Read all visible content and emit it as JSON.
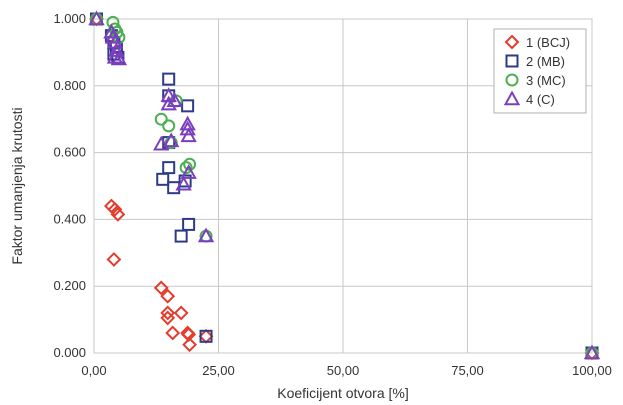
{
  "chart_data": {
    "type": "scatter",
    "title": "",
    "xlabel": "Koeficijent otvora [%]",
    "ylabel": "Faktor umanjenja krutosti",
    "xlim": [
      0,
      100
    ],
    "ylim": [
      0,
      1
    ],
    "x_ticks": [
      0,
      25,
      50,
      75,
      100
    ],
    "x_tick_labels": [
      "0,00",
      "25,00",
      "50,00",
      "75,00",
      "100,00"
    ],
    "y_ticks": [
      0,
      0.2,
      0.4,
      0.6,
      0.8,
      1.0
    ],
    "y_tick_labels": [
      "0.000",
      "0.200",
      "0.400",
      "0.600",
      "0.800",
      "1.000"
    ],
    "grid": true,
    "legend_position": "top-right",
    "series": [
      {
        "name": "1 (BCJ)",
        "marker": "diamond",
        "color": "#e53b2c",
        "points": [
          [
            0.5,
            1.0
          ],
          [
            3.5,
            0.44
          ],
          [
            4.2,
            0.43
          ],
          [
            4.8,
            0.415
          ],
          [
            4.0,
            0.28
          ],
          [
            13.5,
            0.195
          ],
          [
            14.8,
            0.17
          ],
          [
            14.8,
            0.12
          ],
          [
            14.8,
            0.105
          ],
          [
            15.8,
            0.06
          ],
          [
            17.5,
            0.12
          ],
          [
            18.8,
            0.06
          ],
          [
            19.0,
            0.055
          ],
          [
            19.2,
            0.025
          ],
          [
            22.5,
            0.05
          ],
          [
            100,
            0.0
          ]
        ]
      },
      {
        "name": "2 (MB)",
        "marker": "square",
        "color": "#2e3a87",
        "points": [
          [
            0.5,
            1.0
          ],
          [
            3.5,
            0.95
          ],
          [
            4.0,
            0.93
          ],
          [
            4.5,
            0.915
          ],
          [
            4.0,
            0.895
          ],
          [
            4.8,
            0.885
          ],
          [
            13.8,
            0.52
          ],
          [
            15.0,
            0.82
          ],
          [
            15.0,
            0.77
          ],
          [
            15.0,
            0.63
          ],
          [
            15.0,
            0.555
          ],
          [
            16.0,
            0.495
          ],
          [
            17.5,
            0.35
          ],
          [
            18.3,
            0.515
          ],
          [
            18.8,
            0.74
          ],
          [
            19.0,
            0.385
          ],
          [
            22.5,
            0.05
          ],
          [
            100,
            0.0
          ]
        ]
      },
      {
        "name": "3 (MC)",
        "marker": "circle",
        "color": "#4caf50",
        "points": [
          [
            0.5,
            1.0
          ],
          [
            3.8,
            0.99
          ],
          [
            4.2,
            0.97
          ],
          [
            4.6,
            0.96
          ],
          [
            5.0,
            0.945
          ],
          [
            13.5,
            0.7
          ],
          [
            15.0,
            0.68
          ],
          [
            15.5,
            0.63
          ],
          [
            16.5,
            0.755
          ],
          [
            18.5,
            0.555
          ],
          [
            19.2,
            0.565
          ],
          [
            22.5,
            0.35
          ],
          [
            100,
            0.0
          ]
        ]
      },
      {
        "name": "4 (C)",
        "marker": "triangle",
        "color": "#7b3fbe",
        "points": [
          [
            0.5,
            1.0
          ],
          [
            3.5,
            0.96
          ],
          [
            3.8,
            0.945
          ],
          [
            4.2,
            0.93
          ],
          [
            4.5,
            0.905
          ],
          [
            4.2,
            0.885
          ],
          [
            5.0,
            0.88
          ],
          [
            13.5,
            0.625
          ],
          [
            15.0,
            0.77
          ],
          [
            15.0,
            0.745
          ],
          [
            15.5,
            0.635
          ],
          [
            16.2,
            0.755
          ],
          [
            18.0,
            0.505
          ],
          [
            18.8,
            0.685
          ],
          [
            18.8,
            0.67
          ],
          [
            19.0,
            0.65
          ],
          [
            19.0,
            0.54
          ],
          [
            22.5,
            0.35
          ],
          [
            100,
            0.0
          ]
        ]
      }
    ]
  }
}
